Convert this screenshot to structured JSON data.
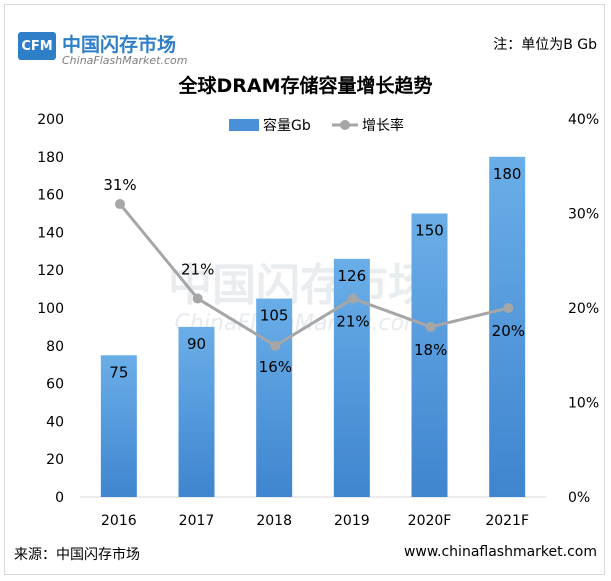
{
  "header": {
    "logo_mark": "CFM",
    "logo_name": "中国闪存市场",
    "logo_site": "ChinaFlashMarket.com",
    "unit_note": "注：单位为B Gb"
  },
  "watermark": {
    "cn": "中国闪存市场",
    "en": "ChinaFlashMarket.com"
  },
  "footer": {
    "source": "来源：中国闪存市场",
    "website": "www.chinaflashmarket.com"
  },
  "chart_data": {
    "type": "bar",
    "title": "全球DRAM存储容量增长趋势",
    "categories": [
      "2016",
      "2017",
      "2018",
      "2019",
      "2020F",
      "2021F"
    ],
    "series": [
      {
        "name": "容量Gb",
        "type": "bar",
        "axis": "left",
        "values": [
          75,
          90,
          105,
          126,
          150,
          180
        ],
        "labels": [
          "75",
          "90",
          "105",
          "126",
          "150",
          "180"
        ],
        "color": "#4a90d9"
      },
      {
        "name": "增长率",
        "type": "line",
        "axis": "right",
        "values": [
          31,
          21,
          16,
          21,
          18,
          20
        ],
        "labels": [
          "31%",
          "21%",
          "16%",
          "21%",
          "18%",
          "20%"
        ],
        "color": "#a6a6a6"
      }
    ],
    "y_left": {
      "min": 0,
      "max": 200,
      "ticks": [
        0,
        20,
        40,
        60,
        80,
        100,
        120,
        140,
        160,
        180,
        200
      ]
    },
    "y_right": {
      "min": 0,
      "max": 40,
      "ticks": [
        0,
        10,
        20,
        30,
        40
      ],
      "tick_labels": [
        "0%",
        "10%",
        "20%",
        "30%",
        "40%"
      ]
    },
    "legend_position": "top-center",
    "grid": false
  }
}
